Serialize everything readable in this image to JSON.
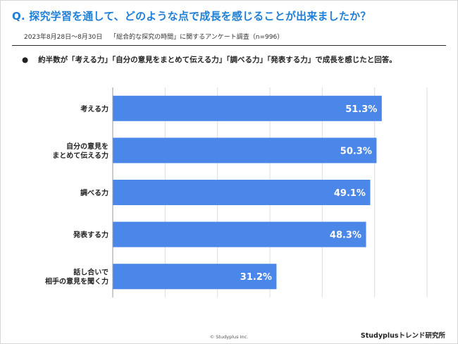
{
  "header": {
    "title": "Q. 探究学習を通して、どのような点で成長を感じることが出来ましたか？",
    "survey_period": "2023年8月28日〜8月30日",
    "survey_name": "「総合的な探究の時間」に関するアンケート調査（n=996）"
  },
  "summary": {
    "bullet": "●",
    "text": "約半数が「考える力」「自分の意見をまとめて伝える力」「調べる力」「発表する力」で成長を感じたと回答。"
  },
  "chart_data": {
    "type": "bar",
    "orientation": "horizontal",
    "categories": [
      "考える力",
      "自分の意見を\nまとめて伝える力",
      "調べる力",
      "発表する力",
      "話し合いで\n相手の意見を聞く力"
    ],
    "values": [
      51.3,
      50.3,
      49.1,
      48.3,
      31.2
    ],
    "value_labels": [
      "51.3%",
      "50.3%",
      "49.1%",
      "48.3%",
      "31.2%"
    ],
    "xlim": [
      0,
      60
    ],
    "grid": true,
    "bar_color": "#4a87e8",
    "label_color": "#ffffff"
  },
  "footer": {
    "copyright": "© Studyplus Inc.",
    "brand": "Studyplusトレンド研究所"
  }
}
